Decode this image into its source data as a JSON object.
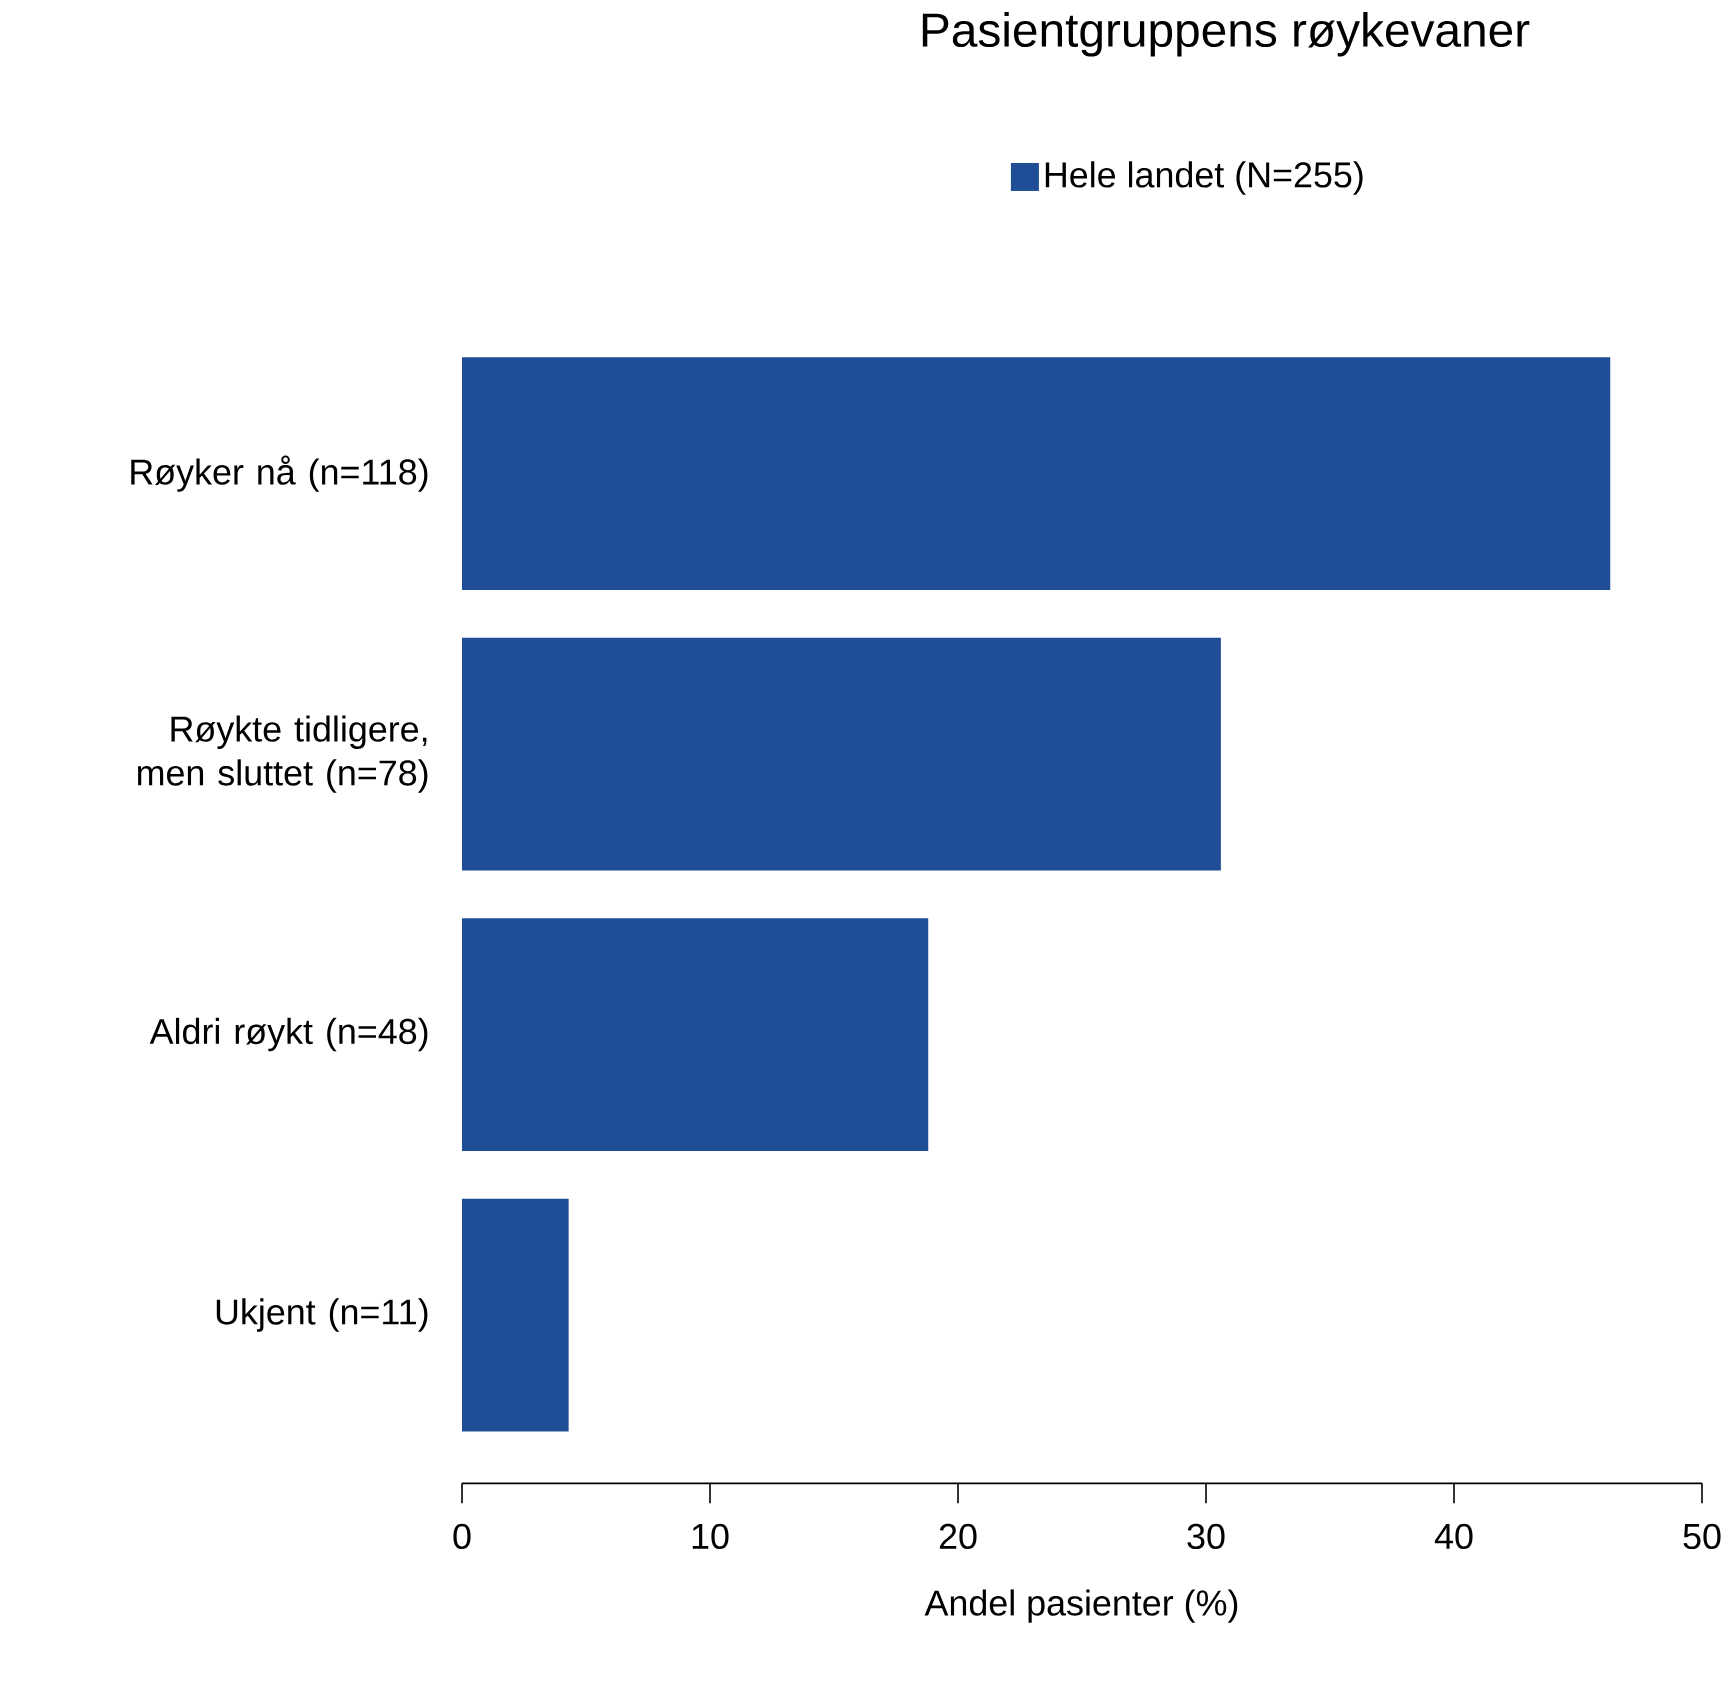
{
  "chart_data": {
    "type": "bar",
    "orientation": "horizontal",
    "title": "Pasientgruppens røykevaner",
    "xlabel": "Andel pasienter (%)",
    "categories": [
      "Røyker nå (n=118)",
      "Røykte tidligere, men sluttet (n=78)",
      "Aldri røykt (n=48)",
      "Ukjent (n=11)"
    ],
    "series": [
      {
        "name": "Hele landet (N=255)",
        "color": "#1f4e96",
        "values": [
          46.3,
          30.6,
          18.8,
          4.3
        ]
      }
    ],
    "xlim": [
      0,
      50
    ],
    "xticks": [
      0,
      10,
      20,
      30,
      40,
      50
    ],
    "legend": "top",
    "grid": false
  }
}
